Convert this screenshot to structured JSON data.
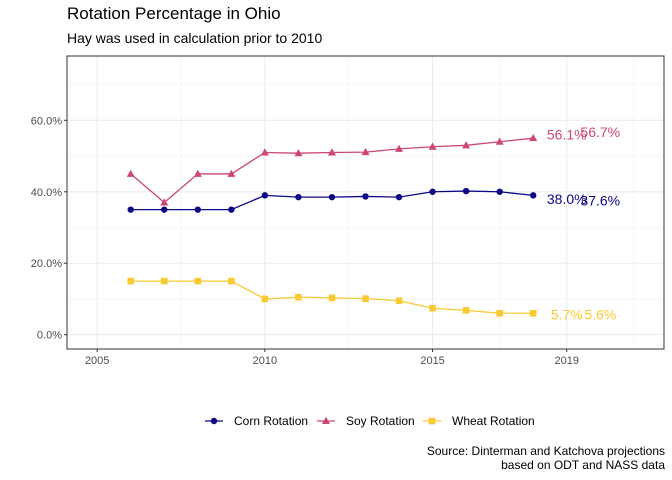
{
  "chart_data": {
    "type": "line",
    "title": "Rotation Percentage in Ohio",
    "subtitle": "Hay was used in calculation prior to 2010",
    "caption": [
      "Source: Dinterman and Katchova projections",
      "based on ODT and NASS data"
    ],
    "xlabel": "",
    "ylabel": "",
    "xlim": [
      2004.1,
      2021.9
    ],
    "ylim": [
      -0.04,
      0.78
    ],
    "x_ticks": [
      2005,
      2010,
      2015,
      2019
    ],
    "x_tick_labels": [
      "2005",
      "2010",
      "2015",
      "2019"
    ],
    "y_ticks": [
      0,
      0.2,
      0.4,
      0.6
    ],
    "y_tick_labels": [
      "0.0%",
      "20.0%",
      "40.0%",
      "60.0%"
    ],
    "grid": true,
    "legend_position": "bottom",
    "x": [
      2006,
      2007,
      2008,
      2009,
      2010,
      2011,
      2012,
      2013,
      2014,
      2015,
      2016,
      2017,
      2018
    ],
    "series": [
      {
        "name": "Corn Rotation",
        "color": "#0d0887",
        "marker": "circle",
        "values": [
          0.35,
          0.35,
          0.35,
          0.35,
          0.39,
          0.385,
          0.385,
          0.387,
          0.385,
          0.4,
          0.402,
          0.4,
          0.39
        ],
        "end_labels": [
          {
            "text": "38.0%",
            "x": 2019,
            "y": 0.38
          },
          {
            "text": "37.6%",
            "x": 2020,
            "y": 0.376
          }
        ]
      },
      {
        "name": "Soy Rotation",
        "color": "#cc4778",
        "marker": "triangle",
        "values": [
          0.45,
          0.37,
          0.45,
          0.45,
          0.51,
          0.508,
          0.51,
          0.511,
          0.52,
          0.526,
          0.53,
          0.54,
          0.55
        ],
        "end_labels": [
          {
            "text": "56.1%",
            "x": 2019,
            "y": 0.561
          },
          {
            "text": "56.7%",
            "x": 2020,
            "y": 0.567
          }
        ]
      },
      {
        "name": "Wheat Rotation",
        "color": "#f9c932",
        "marker": "square",
        "values": [
          0.15,
          0.15,
          0.15,
          0.15,
          0.1,
          0.105,
          0.103,
          0.101,
          0.095,
          0.074,
          0.068,
          0.06,
          0.06
        ],
        "end_labels": [
          {
            "text": "5.7%",
            "x": 2019,
            "y": 0.057
          },
          {
            "text": "5.6%",
            "x": 2020,
            "y": 0.056
          }
        ]
      }
    ]
  }
}
